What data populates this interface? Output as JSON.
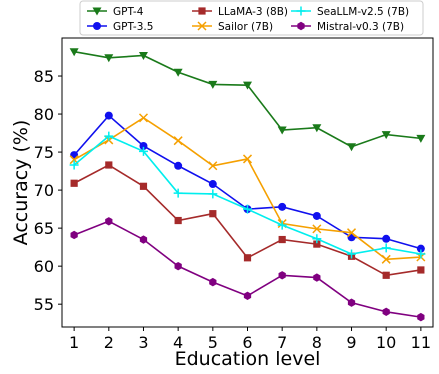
{
  "chart_data": {
    "type": "line",
    "xlabel": "Education level",
    "ylabel": "Accuracy (%)",
    "x": [
      1,
      2,
      3,
      4,
      5,
      6,
      7,
      8,
      9,
      10,
      11
    ],
    "xlim": [
      0.65,
      11.35
    ],
    "ylim": [
      52.0,
      90.0
    ],
    "yticks": [
      55,
      60,
      65,
      70,
      75,
      80,
      85
    ],
    "grid": false,
    "legend_position": "top",
    "series": [
      {
        "name": "GPT-4",
        "color": "#1a7a1a",
        "marker": "triangle-down",
        "values": [
          88.2,
          87.4,
          87.7,
          85.5,
          83.9,
          83.8,
          77.9,
          78.2,
          75.7,
          77.3,
          76.8
        ]
      },
      {
        "name": "GPT-3.5",
        "color": "#1010ee",
        "marker": "circle",
        "values": [
          74.6,
          79.8,
          75.8,
          73.2,
          70.8,
          67.5,
          67.8,
          66.6,
          63.8,
          63.6,
          62.3
        ]
      },
      {
        "name": "LLaMA-3 (8B)",
        "color": "#a52a2a",
        "marker": "square",
        "values": [
          70.9,
          73.3,
          70.5,
          66.0,
          66.9,
          61.1,
          63.5,
          62.9,
          61.3,
          58.8,
          59.5
        ]
      },
      {
        "name": "Sailor (7B)",
        "color": "#f5a000",
        "marker": "x",
        "values": [
          74.0,
          76.6,
          79.5,
          76.5,
          73.2,
          74.1,
          65.6,
          64.9,
          64.4,
          60.9,
          61.2
        ]
      },
      {
        "name": "SeaLLM-v2.5 (7B)",
        "color": "#00eeee",
        "marker": "plus",
        "values": [
          73.3,
          77.1,
          75.1,
          69.6,
          69.5,
          67.5,
          65.4,
          63.6,
          61.6,
          62.4,
          61.6
        ]
      },
      {
        "name": "Mistral-v0.3 (7B)",
        "color": "#800080",
        "marker": "hexagon",
        "values": [
          64.1,
          65.9,
          63.5,
          60.0,
          57.9,
          56.1,
          58.8,
          58.5,
          55.2,
          54.0,
          53.3
        ]
      }
    ]
  }
}
